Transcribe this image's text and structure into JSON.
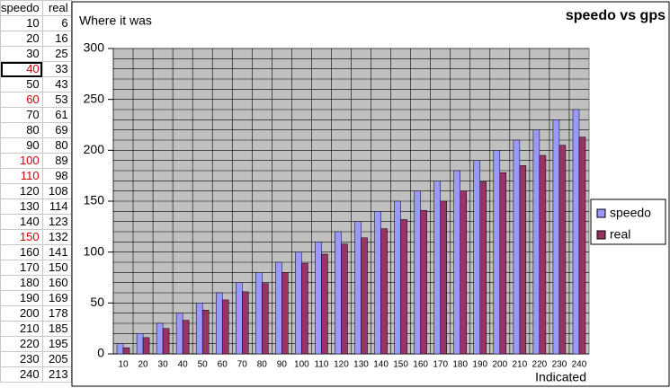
{
  "chart_data": {
    "type": "bar",
    "title": "speedo vs gps",
    "subtitle": "Where it was",
    "x_label": "Indicated",
    "categories": [
      "10",
      "20",
      "30",
      "40",
      "50",
      "60",
      "70",
      "80",
      "90",
      "100",
      "110",
      "120",
      "130",
      "140",
      "150",
      "160",
      "170",
      "180",
      "190",
      "200",
      "210",
      "220",
      "230",
      "240"
    ],
    "series": [
      {
        "name": "speedo",
        "color": "#9999ff",
        "values": [
          10,
          20,
          30,
          40,
          50,
          60,
          70,
          80,
          90,
          100,
          110,
          120,
          130,
          140,
          150,
          160,
          170,
          180,
          190,
          200,
          210,
          220,
          230,
          240
        ]
      },
      {
        "name": "real",
        "color": "#993366",
        "values": [
          6,
          16,
          25,
          33,
          43,
          53,
          61,
          69,
          80,
          89,
          98,
          108,
          114,
          123,
          132,
          141,
          150,
          160,
          169,
          178,
          185,
          195,
          205,
          213
        ]
      }
    ],
    "ylim": [
      0,
      300
    ],
    "yticks": [
      0,
      50,
      100,
      150,
      200,
      250,
      300
    ],
    "yminor": 10,
    "grid": true,
    "legend": "right"
  }
}
